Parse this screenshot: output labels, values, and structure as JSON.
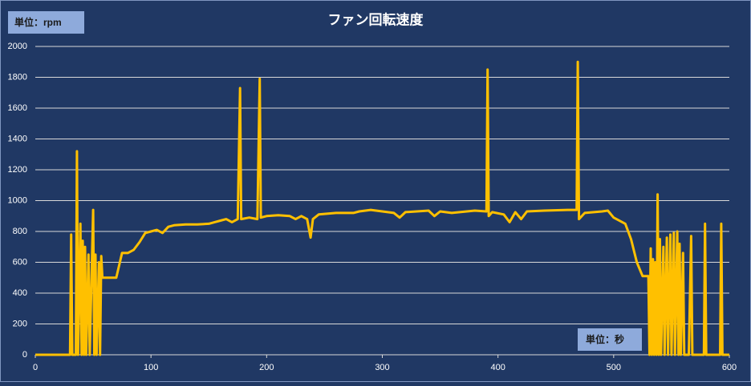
{
  "chart_data": {
    "type": "line",
    "title": "ファン回転速度",
    "y_unit_label": "単位：rpm",
    "x_unit_label": "単位：秒",
    "xlim": [
      0,
      600
    ],
    "xticks": [
      0,
      100,
      200,
      300,
      400,
      500,
      600
    ],
    "ylim": [
      0,
      2000
    ],
    "yticks": [
      0,
      200,
      400,
      600,
      800,
      1000,
      1200,
      1400,
      1600,
      1800,
      2000
    ],
    "grid": true,
    "series": [
      {
        "color": "#ffc000",
        "x": [
          0,
          30,
          31,
          32,
          35,
          36,
          37,
          39,
          40,
          41,
          42,
          43,
          44,
          46,
          47,
          50,
          51,
          52,
          53,
          55,
          56,
          57,
          58,
          70,
          75,
          80,
          85,
          90,
          95,
          100,
          105,
          110,
          115,
          120,
          130,
          140,
          150,
          155,
          160,
          165,
          170,
          175,
          177,
          178,
          185,
          192,
          194,
          195,
          200,
          210,
          220,
          225,
          230,
          235,
          238,
          240,
          245,
          260,
          275,
          280,
          290,
          300,
          310,
          315,
          320,
          340,
          345,
          350,
          360,
          380,
          390,
          391,
          392,
          395,
          405,
          410,
          415,
          420,
          425,
          440,
          460,
          468,
          469,
          470,
          475,
          490,
          495,
          500,
          510,
          515,
          520,
          525,
          530,
          531,
          532,
          533,
          534,
          535,
          536,
          537,
          538,
          539,
          540,
          541,
          543,
          544,
          546,
          547,
          549,
          550,
          552,
          553,
          555,
          556,
          557,
          558,
          560,
          561,
          565,
          567,
          568,
          578,
          579,
          580,
          592,
          593,
          594,
          600
        ],
        "values": [
          0,
          0,
          780,
          0,
          0,
          1320,
          0,
          850,
          0,
          740,
          0,
          700,
          0,
          650,
          0,
          940,
          0,
          650,
          0,
          600,
          0,
          640,
          500,
          500,
          660,
          660,
          680,
          730,
          790,
          800,
          810,
          790,
          830,
          840,
          845,
          845,
          850,
          860,
          870,
          880,
          860,
          880,
          1730,
          880,
          890,
          880,
          1790,
          890,
          900,
          905,
          900,
          880,
          900,
          880,
          760,
          880,
          910,
          920,
          920,
          930,
          940,
          930,
          920,
          890,
          925,
          935,
          900,
          930,
          920,
          935,
          930,
          1850,
          900,
          925,
          910,
          860,
          925,
          880,
          930,
          935,
          940,
          940,
          1900,
          880,
          920,
          930,
          935,
          890,
          850,
          750,
          600,
          510,
          510,
          0,
          690,
          0,
          620,
          0,
          600,
          0,
          1040,
          0,
          750,
          0,
          700,
          0,
          760,
          0,
          780,
          0,
          790,
          0,
          800,
          0,
          720,
          0,
          660,
          0,
          0,
          770,
          0,
          0,
          850,
          0,
          0,
          850,
          0,
          0
        ]
      }
    ]
  }
}
